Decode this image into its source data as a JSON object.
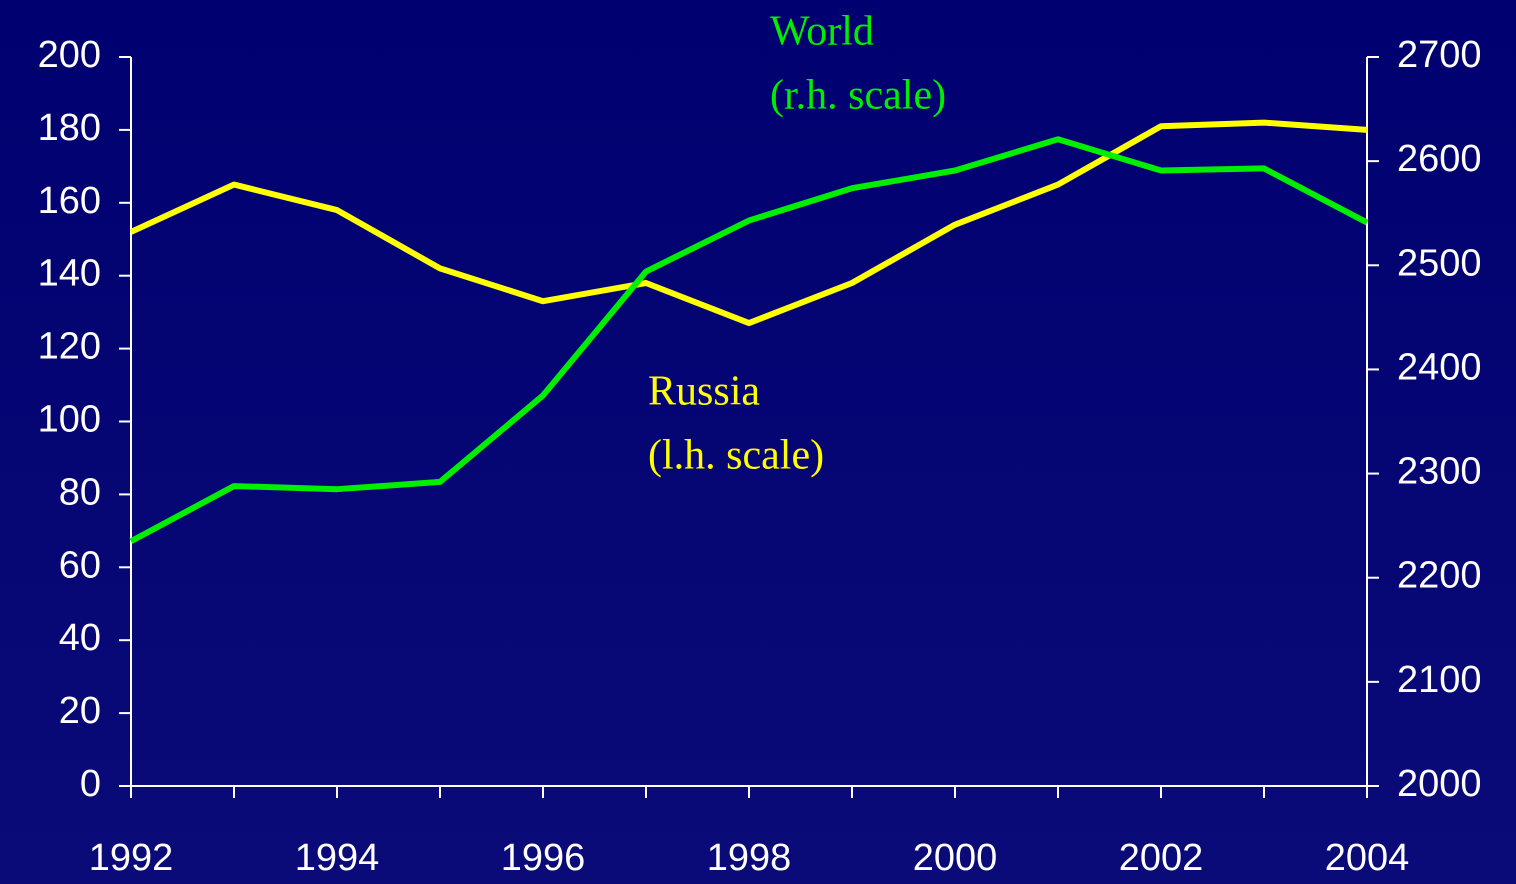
{
  "chart_data": {
    "type": "line",
    "x": [
      1992,
      1993,
      1994,
      1995,
      1996,
      1997,
      1998,
      1999,
      2000,
      2001,
      2002,
      2003,
      2004
    ],
    "xlim": [
      1992,
      2004
    ],
    "xticks": [
      1992,
      1994,
      1996,
      1998,
      2000,
      2002,
      2004
    ],
    "ylim": [
      0,
      200
    ],
    "yticks": [
      0,
      20,
      40,
      60,
      80,
      100,
      120,
      140,
      160,
      180,
      200
    ],
    "y2lim": [
      2000,
      2700
    ],
    "y2ticks": [
      2000,
      2100,
      2200,
      2300,
      2400,
      2500,
      2600,
      2700
    ],
    "series": [
      {
        "name": "Russia",
        "color": "#ffff00",
        "values": [
          152,
          165,
          158,
          142,
          133,
          138,
          127,
          138,
          154,
          165,
          181,
          182,
          180
        ]
      },
      {
        "name": "World",
        "color": "#00ee00",
        "axis": "y2",
        "values": [
          2235,
          2288,
          2285,
          2292,
          2375,
          2494,
          2543,
          2574,
          2591,
          2621,
          2591,
          2593,
          2541
        ]
      }
    ],
    "annotations": [
      {
        "lines": [
          "World",
          "(r.h. scale)"
        ],
        "color": "#00ee00"
      },
      {
        "lines": [
          "Russia",
          "(l.h. scale)"
        ],
        "color": "#ffff00"
      }
    ]
  }
}
